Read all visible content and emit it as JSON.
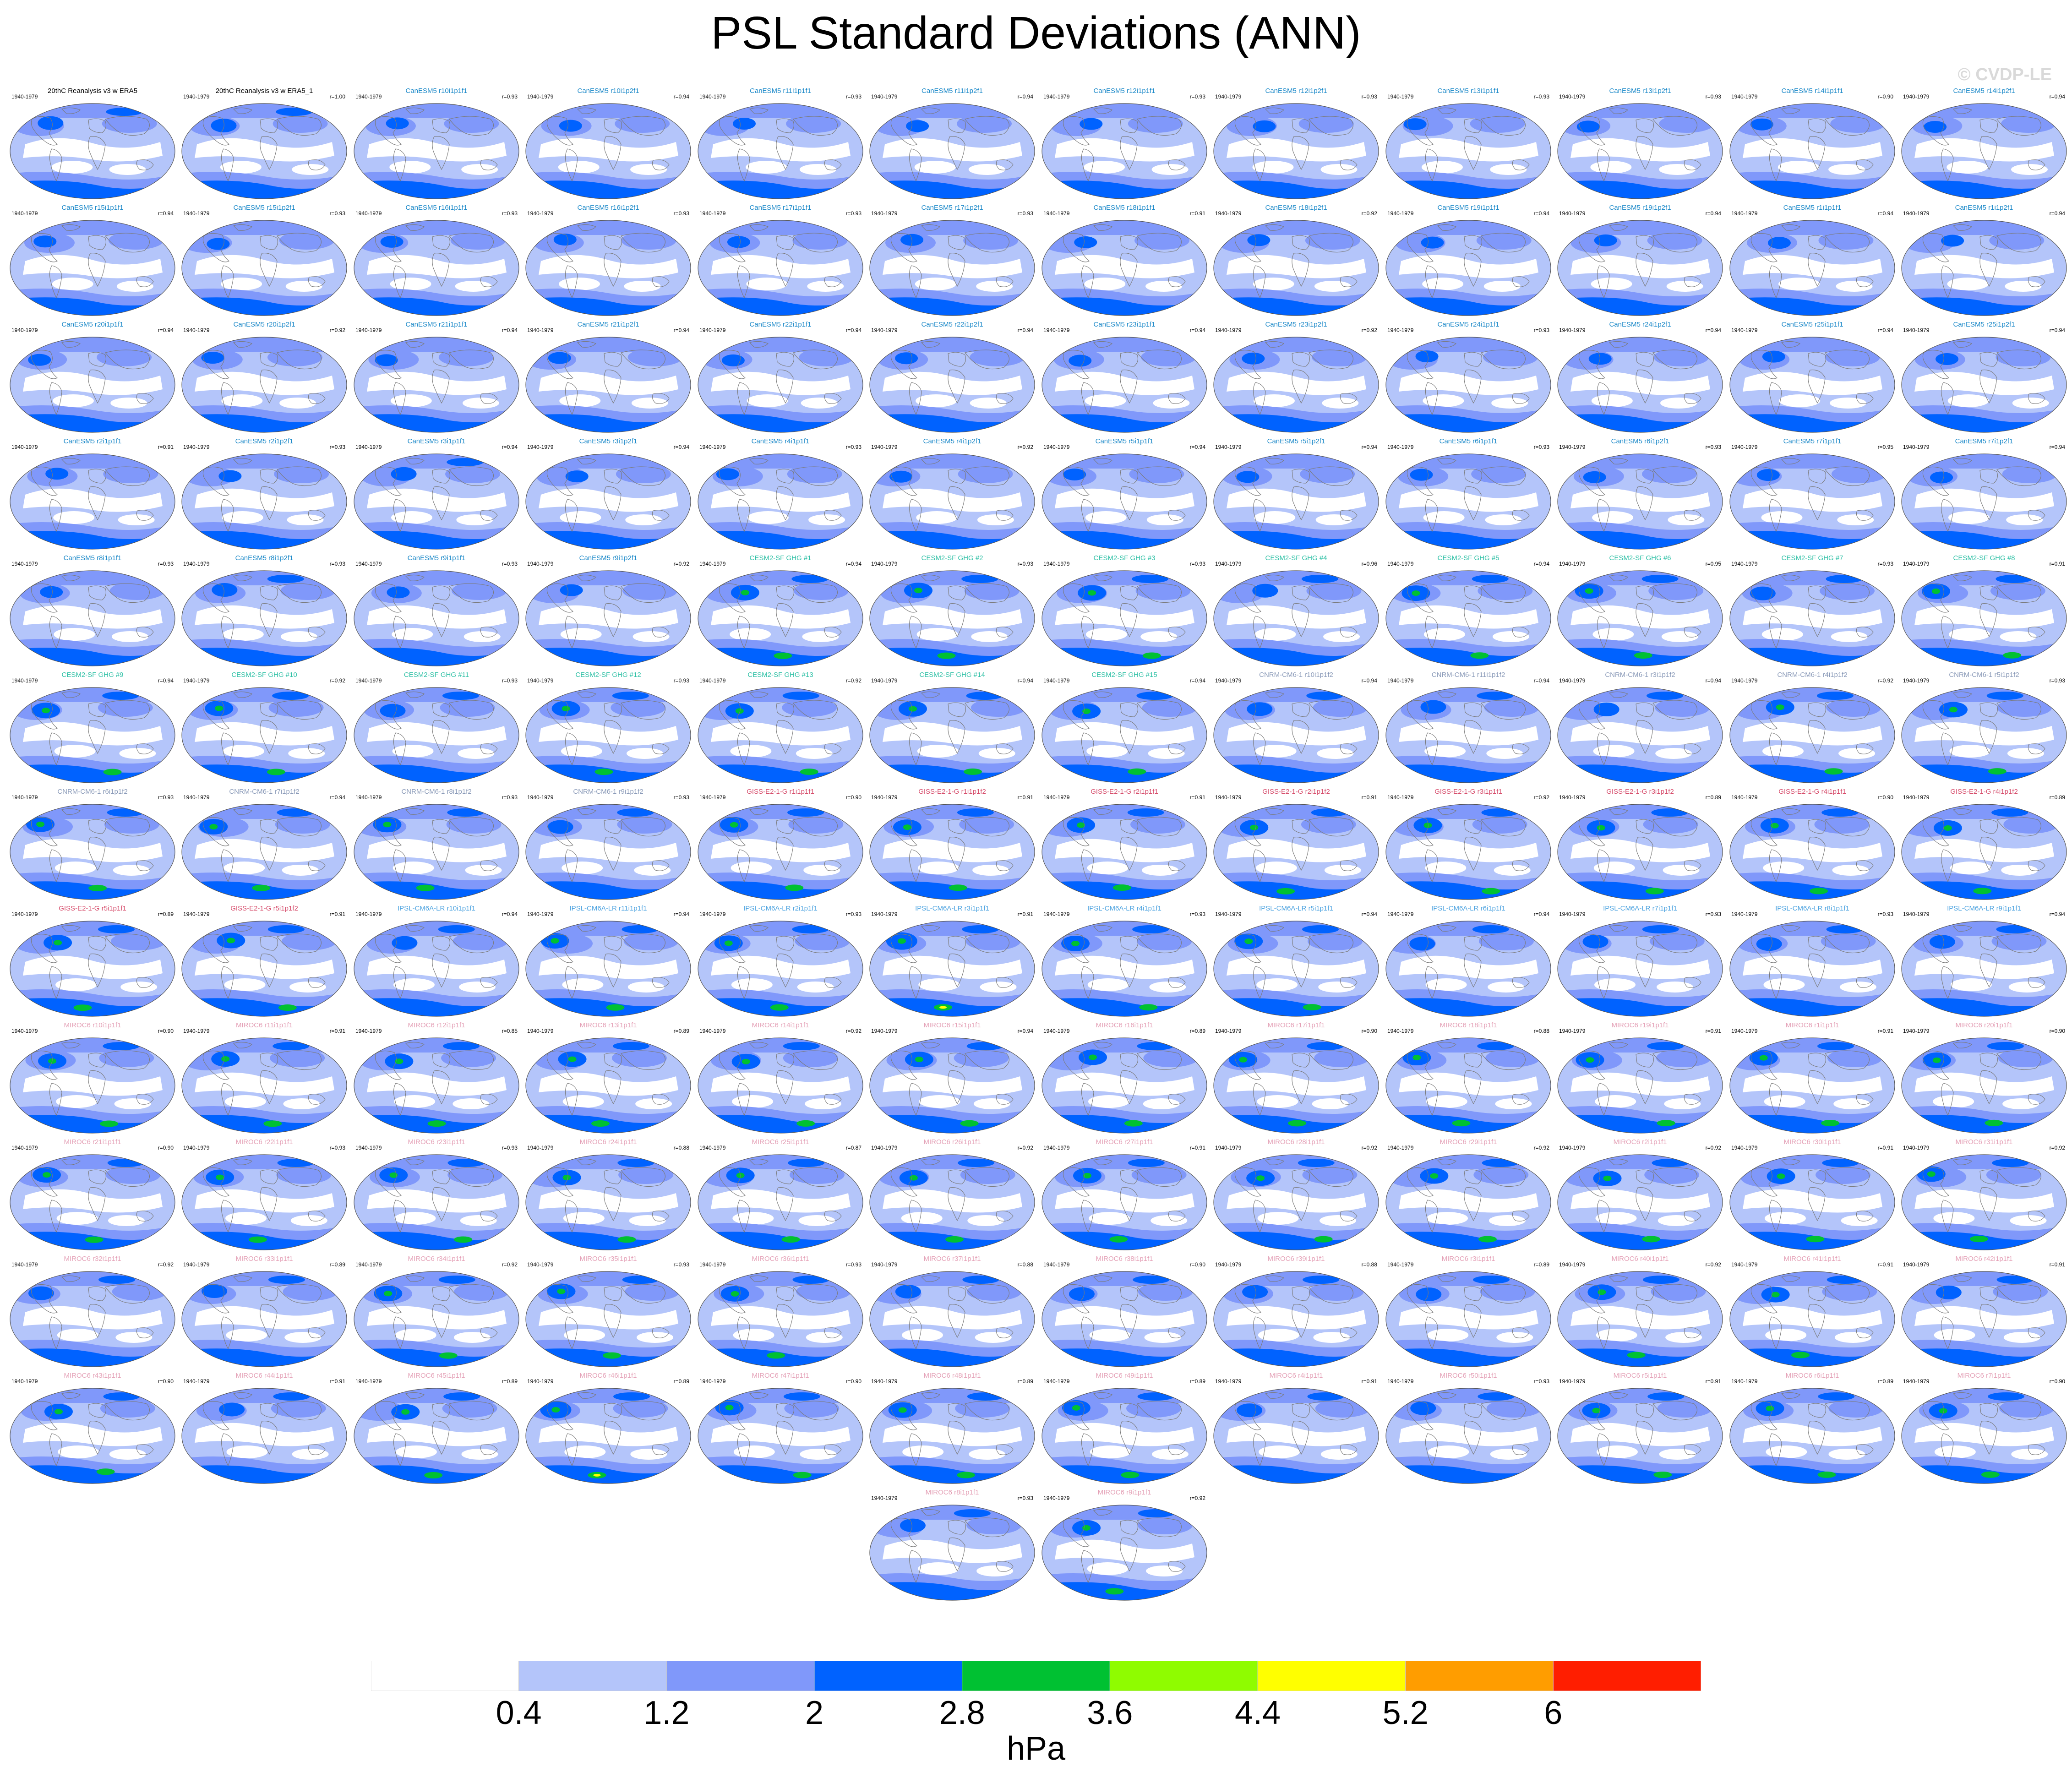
{
  "title": "PSL Standard Deviations (ANN)",
  "watermark": "© CVDP-LE",
  "colorbar": {
    "units": "hPa",
    "labels": [
      "0.4",
      "1.2",
      "2",
      "2.8",
      "3.6",
      "4.4",
      "5.2",
      "6"
    ],
    "colors": [
      "#ffffff",
      "#b4c5fa",
      "#8098fa",
      "#0062ff",
      "#00c132",
      "#8ffc00",
      "#ffff00",
      "#ff9d00",
      "#ff1e00"
    ]
  },
  "map_colors": {
    "lightest": "#ffffff",
    "light": "#b4c5fa",
    "medium": "#8098fa",
    "strong": "#0062ff",
    "green": "#00c132",
    "yellow": "#ffff00",
    "coast": "#7a7a7a"
  },
  "name_colors": {
    "obs": "#000000",
    "CanESM5": "#1a88c8",
    "CESM2-SF GHG": "#2bbfa4",
    "CNRM-CM6-1": "#8a9ab8",
    "GISS-E2-1-G": "#d64c6b",
    "IPSL-CM6A-LR": "#4da3e0",
    "MIROC6": "#e4a0b6"
  },
  "chart_data": {
    "type": "panel-grid",
    "period": "1940-1979",
    "panels": [
      {
        "name": "20thC Reanalysis v3 w ERA5",
        "r": "",
        "level": 2,
        "group": "obs"
      },
      {
        "name": "20thC Reanalysis v3 w ERA5_1",
        "r": "r=1.00",
        "level": 2,
        "group": "obs"
      },
      {
        "name": "CanESM5 r10i1p1f1",
        "r": "r=0.93",
        "level": 1,
        "group": "CanESM5"
      },
      {
        "name": "CanESM5 r10i1p2f1",
        "r": "r=0.94",
        "level": 1,
        "group": "CanESM5"
      },
      {
        "name": "CanESM5 r11i1p1f1",
        "r": "r=0.93",
        "level": 1,
        "group": "CanESM5"
      },
      {
        "name": "CanESM5 r11i1p2f1",
        "r": "r=0.94",
        "level": 1,
        "group": "CanESM5"
      },
      {
        "name": "CanESM5 r12i1p1f1",
        "r": "r=0.93",
        "level": 1,
        "group": "CanESM5"
      },
      {
        "name": "CanESM5 r12i1p2f1",
        "r": "r=0.93",
        "level": 1,
        "group": "CanESM5"
      },
      {
        "name": "CanESM5 r13i1p1f1",
        "r": "r=0.93",
        "level": 1,
        "group": "CanESM5"
      },
      {
        "name": "CanESM5 r13i1p2f1",
        "r": "r=0.93",
        "level": 1,
        "group": "CanESM5"
      },
      {
        "name": "CanESM5 r14i1p1f1",
        "r": "r=0.90",
        "level": 1,
        "group": "CanESM5"
      },
      {
        "name": "CanESM5 r14i1p2f1",
        "r": "r=0.94",
        "level": 1,
        "group": "CanESM5"
      },
      {
        "name": "CanESM5 r15i1p1f1",
        "r": "r=0.94",
        "level": 1,
        "group": "CanESM5"
      },
      {
        "name": "CanESM5 r15i1p2f1",
        "r": "r=0.93",
        "level": 1,
        "group": "CanESM5"
      },
      {
        "name": "CanESM5 r16i1p1f1",
        "r": "r=0.93",
        "level": 1,
        "group": "CanESM5"
      },
      {
        "name": "CanESM5 r16i1p2f1",
        "r": "r=0.93",
        "level": 1,
        "group": "CanESM5"
      },
      {
        "name": "CanESM5 r17i1p1f1",
        "r": "r=0.93",
        "level": 1,
        "group": "CanESM5"
      },
      {
        "name": "CanESM5 r17i1p2f1",
        "r": "r=0.93",
        "level": 1,
        "group": "CanESM5"
      },
      {
        "name": "CanESM5 r18i1p1f1",
        "r": "r=0.91",
        "level": 1,
        "group": "CanESM5"
      },
      {
        "name": "CanESM5 r18i1p2f1",
        "r": "r=0.92",
        "level": 1,
        "group": "CanESM5"
      },
      {
        "name": "CanESM5 r19i1p1f1",
        "r": "r=0.94",
        "level": 1,
        "group": "CanESM5"
      },
      {
        "name": "CanESM5 r19i1p2f1",
        "r": "r=0.94",
        "level": 1,
        "group": "CanESM5"
      },
      {
        "name": "CanESM5 r1i1p1f1",
        "r": "r=0.94",
        "level": 1,
        "group": "CanESM5"
      },
      {
        "name": "CanESM5 r1i1p2f1",
        "r": "r=0.94",
        "level": 1,
        "group": "CanESM5"
      },
      {
        "name": "CanESM5 r20i1p1f1",
        "r": "r=0.94",
        "level": 1,
        "group": "CanESM5"
      },
      {
        "name": "CanESM5 r20i1p2f1",
        "r": "r=0.92",
        "level": 1,
        "group": "CanESM5"
      },
      {
        "name": "CanESM5 r21i1p1f1",
        "r": "r=0.94",
        "level": 1,
        "group": "CanESM5"
      },
      {
        "name": "CanESM5 r21i1p2f1",
        "r": "r=0.94",
        "level": 1,
        "group": "CanESM5"
      },
      {
        "name": "CanESM5 r22i1p1f1",
        "r": "r=0.94",
        "level": 1,
        "group": "CanESM5"
      },
      {
        "name": "CanESM5 r22i1p2f1",
        "r": "r=0.94",
        "level": 1,
        "group": "CanESM5"
      },
      {
        "name": "CanESM5 r23i1p1f1",
        "r": "r=0.94",
        "level": 1,
        "group": "CanESM5"
      },
      {
        "name": "CanESM5 r23i1p2f1",
        "r": "r=0.92",
        "level": 1,
        "group": "CanESM5"
      },
      {
        "name": "CanESM5 r24i1p1f1",
        "r": "r=0.93",
        "level": 1,
        "group": "CanESM5"
      },
      {
        "name": "CanESM5 r24i1p2f1",
        "r": "r=0.94",
        "level": 1,
        "group": "CanESM5"
      },
      {
        "name": "CanESM5 r25i1p1f1",
        "r": "r=0.94",
        "level": 1,
        "group": "CanESM5"
      },
      {
        "name": "CanESM5 r25i1p2f1",
        "r": "r=0.94",
        "level": 1,
        "group": "CanESM5"
      },
      {
        "name": "CanESM5 r2i1p1f1",
        "r": "r=0.91",
        "level": 1,
        "group": "CanESM5"
      },
      {
        "name": "CanESM5 r2i1p2f1",
        "r": "r=0.93",
        "level": 1,
        "group": "CanESM5"
      },
      {
        "name": "CanESM5 r3i1p1f1",
        "r": "r=0.94",
        "level": 2,
        "group": "CanESM5"
      },
      {
        "name": "CanESM5 r3i1p2f1",
        "r": "r=0.94",
        "level": 1,
        "group": "CanESM5"
      },
      {
        "name": "CanESM5 r4i1p1f1",
        "r": "r=0.93",
        "level": 1,
        "group": "CanESM5"
      },
      {
        "name": "CanESM5 r4i1p2f1",
        "r": "r=0.92",
        "level": 1,
        "group": "CanESM5"
      },
      {
        "name": "CanESM5 r5i1p1f1",
        "r": "r=0.94",
        "level": 1,
        "group": "CanESM5"
      },
      {
        "name": "CanESM5 r5i1p2f1",
        "r": "r=0.94",
        "level": 1,
        "group": "CanESM5"
      },
      {
        "name": "CanESM5 r6i1p1f1",
        "r": "r=0.93",
        "level": 1,
        "group": "CanESM5"
      },
      {
        "name": "CanESM5 r6i1p2f1",
        "r": "r=0.93",
        "level": 1,
        "group": "CanESM5"
      },
      {
        "name": "CanESM5 r7i1p1f1",
        "r": "r=0.95",
        "level": 1,
        "group": "CanESM5"
      },
      {
        "name": "CanESM5 r7i1p2f1",
        "r": "r=0.94",
        "level": 1,
        "group": "CanESM5"
      },
      {
        "name": "CanESM5 r8i1p1f1",
        "r": "r=0.93",
        "level": 1,
        "group": "CanESM5"
      },
      {
        "name": "CanESM5 r8i1p2f1",
        "r": "r=0.93",
        "level": 2,
        "group": "CanESM5"
      },
      {
        "name": "CanESM5 r9i1p1f1",
        "r": "r=0.93",
        "level": 1,
        "group": "CanESM5"
      },
      {
        "name": "CanESM5 r9i1p2f1",
        "r": "r=0.92",
        "level": 1,
        "group": "CanESM5"
      },
      {
        "name": "CESM2-SF GHG #1",
        "r": "r=0.94",
        "level": 3,
        "group": "CESM2-SF GHG"
      },
      {
        "name": "CESM2-SF GHG #2",
        "r": "r=0.93",
        "level": 3,
        "group": "CESM2-SF GHG"
      },
      {
        "name": "CESM2-SF GHG #3",
        "r": "r=0.93",
        "level": 3,
        "group": "CESM2-SF GHG"
      },
      {
        "name": "CESM2-SF GHG #4",
        "r": "r=0.96",
        "level": 2,
        "group": "CESM2-SF GHG"
      },
      {
        "name": "CESM2-SF GHG #5",
        "r": "r=0.94",
        "level": 3,
        "group": "CESM2-SF GHG"
      },
      {
        "name": "CESM2-SF GHG #6",
        "r": "r=0.95",
        "level": 3,
        "group": "CESM2-SF GHG"
      },
      {
        "name": "CESM2-SF GHG #7",
        "r": "r=0.93",
        "level": 2,
        "group": "CESM2-SF GHG"
      },
      {
        "name": "CESM2-SF GHG #8",
        "r": "r=0.91",
        "level": 3,
        "group": "CESM2-SF GHG"
      },
      {
        "name": "CESM2-SF GHG #9",
        "r": "r=0.94",
        "level": 3,
        "group": "CESM2-SF GHG"
      },
      {
        "name": "CESM2-SF GHG #10",
        "r": "r=0.92",
        "level": 3,
        "group": "CESM2-SF GHG"
      },
      {
        "name": "CESM2-SF GHG #11",
        "r": "r=0.93",
        "level": 2,
        "group": "CESM2-SF GHG"
      },
      {
        "name": "CESM2-SF GHG #12",
        "r": "r=0.93",
        "level": 3,
        "group": "CESM2-SF GHG"
      },
      {
        "name": "CESM2-SF GHG #13",
        "r": "r=0.92",
        "level": 3,
        "group": "CESM2-SF GHG"
      },
      {
        "name": "CESM2-SF GHG #14",
        "r": "r=0.94",
        "level": 3,
        "group": "CESM2-SF GHG"
      },
      {
        "name": "CESM2-SF GHG #15",
        "r": "r=0.94",
        "level": 3,
        "group": "CESM2-SF GHG"
      },
      {
        "name": "CNRM-CM6-1 r10i1p1f2",
        "r": "r=0.94",
        "level": 2,
        "group": "CNRM-CM6-1"
      },
      {
        "name": "CNRM-CM6-1 r11i1p1f2",
        "r": "r=0.94",
        "level": 2,
        "group": "CNRM-CM6-1"
      },
      {
        "name": "CNRM-CM6-1 r3i1p1f2",
        "r": "r=0.94",
        "level": 2,
        "group": "CNRM-CM6-1"
      },
      {
        "name": "CNRM-CM6-1 r4i1p1f2",
        "r": "r=0.92",
        "level": 3,
        "group": "CNRM-CM6-1"
      },
      {
        "name": "CNRM-CM6-1 r5i1p1f2",
        "r": "r=0.93",
        "level": 3,
        "group": "CNRM-CM6-1"
      },
      {
        "name": "CNRM-CM6-1 r6i1p1f2",
        "r": "r=0.93",
        "level": 3,
        "group": "CNRM-CM6-1"
      },
      {
        "name": "CNRM-CM6-1 r7i1p1f2",
        "r": "r=0.94",
        "level": 3,
        "group": "CNRM-CM6-1"
      },
      {
        "name": "CNRM-CM6-1 r8i1p1f2",
        "r": "r=0.93",
        "level": 3,
        "group": "CNRM-CM6-1"
      },
      {
        "name": "CNRM-CM6-1 r9i1p1f2",
        "r": "r=0.93",
        "level": 2,
        "group": "CNRM-CM6-1"
      },
      {
        "name": "GISS-E2-1-G r1i1p1f1",
        "r": "r=0.90",
        "level": 3,
        "group": "GISS-E2-1-G"
      },
      {
        "name": "GISS-E2-1-G r1i1p1f2",
        "r": "r=0.91",
        "level": 3,
        "group": "GISS-E2-1-G"
      },
      {
        "name": "GISS-E2-1-G r2i1p1f1",
        "r": "r=0.91",
        "level": 3,
        "group": "GISS-E2-1-G"
      },
      {
        "name": "GISS-E2-1-G r2i1p1f2",
        "r": "r=0.91",
        "level": 3,
        "group": "GISS-E2-1-G"
      },
      {
        "name": "GISS-E2-1-G r3i1p1f1",
        "r": "r=0.92",
        "level": 3,
        "group": "GISS-E2-1-G"
      },
      {
        "name": "GISS-E2-1-G r3i1p1f2",
        "r": "r=0.89",
        "level": 3,
        "group": "GISS-E2-1-G"
      },
      {
        "name": "GISS-E2-1-G r4i1p1f1",
        "r": "r=0.90",
        "level": 3,
        "group": "GISS-E2-1-G"
      },
      {
        "name": "GISS-E2-1-G r4i1p1f2",
        "r": "r=0.89",
        "level": 3,
        "group": "GISS-E2-1-G"
      },
      {
        "name": "GISS-E2-1-G r5i1p1f1",
        "r": "r=0.89",
        "level": 3,
        "group": "GISS-E2-1-G"
      },
      {
        "name": "GISS-E2-1-G r5i1p1f2",
        "r": "r=0.91",
        "level": 3,
        "group": "GISS-E2-1-G"
      },
      {
        "name": "IPSL-CM6A-LR r10i1p1f1",
        "r": "r=0.94",
        "level": 2,
        "group": "IPSL-CM6A-LR"
      },
      {
        "name": "IPSL-CM6A-LR r11i1p1f1",
        "r": "r=0.94",
        "level": 3,
        "group": "IPSL-CM6A-LR"
      },
      {
        "name": "IPSL-CM6A-LR r2i1p1f1",
        "r": "r=0.93",
        "level": 3,
        "group": "IPSL-CM6A-LR"
      },
      {
        "name": "IPSL-CM6A-LR r3i1p1f1",
        "r": "r=0.91",
        "level": 4,
        "group": "IPSL-CM6A-LR"
      },
      {
        "name": "IPSL-CM6A-LR r4i1p1f1",
        "r": "r=0.93",
        "level": 3,
        "group": "IPSL-CM6A-LR"
      },
      {
        "name": "IPSL-CM6A-LR r5i1p1f1",
        "r": "r=0.94",
        "level": 3,
        "group": "IPSL-CM6A-LR"
      },
      {
        "name": "IPSL-CM6A-LR r6i1p1f1",
        "r": "r=0.94",
        "level": 2,
        "group": "IPSL-CM6A-LR"
      },
      {
        "name": "IPSL-CM6A-LR r7i1p1f1",
        "r": "r=0.93",
        "level": 2,
        "group": "IPSL-CM6A-LR"
      },
      {
        "name": "IPSL-CM6A-LR r8i1p1f1",
        "r": "r=0.93",
        "level": 2,
        "group": "IPSL-CM6A-LR"
      },
      {
        "name": "IPSL-CM6A-LR r9i1p1f1",
        "r": "r=0.94",
        "level": 2,
        "group": "IPSL-CM6A-LR"
      },
      {
        "name": "MIROC6 r10i1p1f1",
        "r": "r=0.90",
        "level": 3,
        "group": "MIROC6"
      },
      {
        "name": "MIROC6 r11i1p1f1",
        "r": "r=0.91",
        "level": 3,
        "group": "MIROC6"
      },
      {
        "name": "MIROC6 r12i1p1f1",
        "r": "r=0.85",
        "level": 3,
        "group": "MIROC6"
      },
      {
        "name": "MIROC6 r13i1p1f1",
        "r": "r=0.89",
        "level": 3,
        "group": "MIROC6"
      },
      {
        "name": "MIROC6 r14i1p1f1",
        "r": "r=0.92",
        "level": 3,
        "group": "MIROC6"
      },
      {
        "name": "MIROC6 r15i1p1f1",
        "r": "r=0.94",
        "level": 3,
        "group": "MIROC6"
      },
      {
        "name": "MIROC6 r16i1p1f1",
        "r": "r=0.89",
        "level": 3,
        "group": "MIROC6"
      },
      {
        "name": "MIROC6 r17i1p1f1",
        "r": "r=0.90",
        "level": 3,
        "group": "MIROC6"
      },
      {
        "name": "MIROC6 r18i1p1f1",
        "r": "r=0.88",
        "level": 3,
        "group": "MIROC6"
      },
      {
        "name": "MIROC6 r19i1p1f1",
        "r": "r=0.91",
        "level": 3,
        "group": "MIROC6"
      },
      {
        "name": "MIROC6 r1i1p1f1",
        "r": "r=0.91",
        "level": 3,
        "group": "MIROC6"
      },
      {
        "name": "MIROC6 r20i1p1f1",
        "r": "r=0.90",
        "level": 3,
        "group": "MIROC6"
      },
      {
        "name": "MIROC6 r21i1p1f1",
        "r": "r=0.90",
        "level": 3,
        "group": "MIROC6"
      },
      {
        "name": "MIROC6 r22i1p1f1",
        "r": "r=0.93",
        "level": 3,
        "group": "MIROC6"
      },
      {
        "name": "MIROC6 r23i1p1f1",
        "r": "r=0.93",
        "level": 3,
        "group": "MIROC6"
      },
      {
        "name": "MIROC6 r24i1p1f1",
        "r": "r=0.88",
        "level": 3,
        "group": "MIROC6"
      },
      {
        "name": "MIROC6 r25i1p1f1",
        "r": "r=0.87",
        "level": 3,
        "group": "MIROC6"
      },
      {
        "name": "MIROC6 r26i1p1f1",
        "r": "r=0.92",
        "level": 3,
        "group": "MIROC6"
      },
      {
        "name": "MIROC6 r27i1p1f1",
        "r": "r=0.91",
        "level": 3,
        "group": "MIROC6"
      },
      {
        "name": "MIROC6 r28i1p1f1",
        "r": "r=0.92",
        "level": 3,
        "group": "MIROC6"
      },
      {
        "name": "MIROC6 r29i1p1f1",
        "r": "r=0.92",
        "level": 3,
        "group": "MIROC6"
      },
      {
        "name": "MIROC6 r2i1p1f1",
        "r": "r=0.92",
        "level": 3,
        "group": "MIROC6"
      },
      {
        "name": "MIROC6 r30i1p1f1",
        "r": "r=0.91",
        "level": 3,
        "group": "MIROC6"
      },
      {
        "name": "MIROC6 r31i1p1f1",
        "r": "r=0.92",
        "level": 3,
        "group": "MIROC6"
      },
      {
        "name": "MIROC6 r32i1p1f1",
        "r": "r=0.92",
        "level": 2,
        "group": "MIROC6"
      },
      {
        "name": "MIROC6 r33i1p1f1",
        "r": "r=0.89",
        "level": 2,
        "group": "MIROC6"
      },
      {
        "name": "MIROC6 r34i1p1f1",
        "r": "r=0.92",
        "level": 3,
        "group": "MIROC6"
      },
      {
        "name": "MIROC6 r35i1p1f1",
        "r": "r=0.93",
        "level": 3,
        "group": "MIROC6"
      },
      {
        "name": "MIROC6 r36i1p1f1",
        "r": "r=0.93",
        "level": 3,
        "group": "MIROC6"
      },
      {
        "name": "MIROC6 r37i1p1f1",
        "r": "r=0.88",
        "level": 2,
        "group": "MIROC6"
      },
      {
        "name": "MIROC6 r38i1p1f1",
        "r": "r=0.90",
        "level": 2,
        "group": "MIROC6"
      },
      {
        "name": "MIROC6 r39i1p1f1",
        "r": "r=0.88",
        "level": 2,
        "group": "MIROC6"
      },
      {
        "name": "MIROC6 r3i1p1f1",
        "r": "r=0.89",
        "level": 2,
        "group": "MIROC6"
      },
      {
        "name": "MIROC6 r40i1p1f1",
        "r": "r=0.92",
        "level": 3,
        "group": "MIROC6"
      },
      {
        "name": "MIROC6 r41i1p1f1",
        "r": "r=0.91",
        "level": 3,
        "group": "MIROC6"
      },
      {
        "name": "MIROC6 r42i1p1f1",
        "r": "r=0.91",
        "level": 2,
        "group": "MIROC6"
      },
      {
        "name": "MIROC6 r43i1p1f1",
        "r": "r=0.90",
        "level": 3,
        "group": "MIROC6"
      },
      {
        "name": "MIROC6 r44i1p1f1",
        "r": "r=0.91",
        "level": 2,
        "group": "MIROC6"
      },
      {
        "name": "MIROC6 r45i1p1f1",
        "r": "r=0.89",
        "level": 3,
        "group": "MIROC6"
      },
      {
        "name": "MIROC6 r46i1p1f1",
        "r": "r=0.89",
        "level": 4,
        "group": "MIROC6"
      },
      {
        "name": "MIROC6 r47i1p1f1",
        "r": "r=0.90",
        "level": 3,
        "group": "MIROC6"
      },
      {
        "name": "MIROC6 r48i1p1f1",
        "r": "r=0.89",
        "level": 3,
        "group": "MIROC6"
      },
      {
        "name": "MIROC6 r49i1p1f1",
        "r": "r=0.89",
        "level": 3,
        "group": "MIROC6"
      },
      {
        "name": "MIROC6 r4i1p1f1",
        "r": "r=0.91",
        "level": 2,
        "group": "MIROC6"
      },
      {
        "name": "MIROC6 r50i1p1f1",
        "r": "r=0.93",
        "level": 2,
        "group": "MIROC6"
      },
      {
        "name": "MIROC6 r5i1p1f1",
        "r": "r=0.91",
        "level": 3,
        "group": "MIROC6"
      },
      {
        "name": "MIROC6 r6i1p1f1",
        "r": "r=0.89",
        "level": 3,
        "group": "MIROC6"
      },
      {
        "name": "MIROC6 r7i1p1f1",
        "r": "r=0.90",
        "level": 3,
        "group": "MIROC6"
      },
      {
        "name": "MIROC6 r8i1p1f1",
        "r": "r=0.93",
        "level": 2,
        "group": "MIROC6"
      },
      {
        "name": "MIROC6 r9i1p1f1",
        "r": "r=0.92",
        "level": 3,
        "group": "MIROC6"
      }
    ]
  }
}
